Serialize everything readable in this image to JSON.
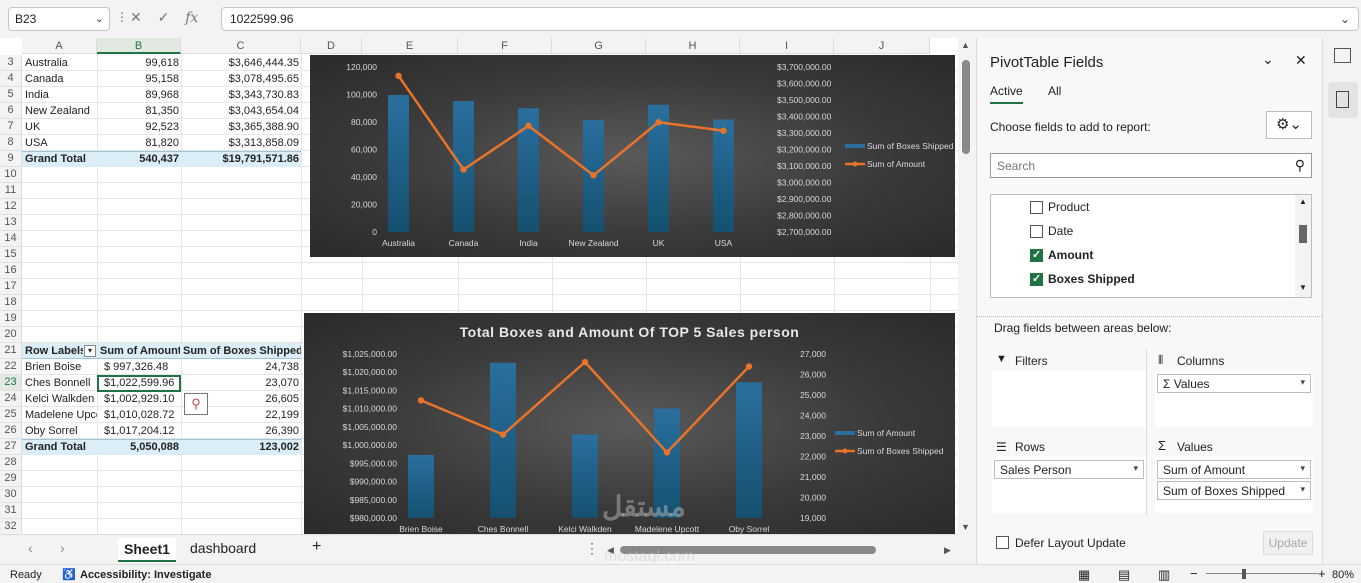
{
  "formula_bar": {
    "name_box": "B23",
    "formula_value": "1022599.96",
    "fx_label": "fx"
  },
  "columns": [
    "A",
    "B",
    "C",
    "D",
    "E",
    "F",
    "G",
    "H",
    "I",
    "J"
  ],
  "rows": [
    "3",
    "4",
    "5",
    "6",
    "7",
    "8",
    "9",
    "10",
    "11",
    "12",
    "13",
    "14",
    "15",
    "16",
    "17",
    "18",
    "19",
    "20",
    "21",
    "22",
    "23",
    "24",
    "25",
    "26",
    "27",
    "28",
    "29",
    "30",
    "31",
    "32"
  ],
  "table1": {
    "rows": [
      {
        "country": "Australia",
        "boxes": "99,618",
        "amount": "$3,646,444.35"
      },
      {
        "country": "Canada",
        "boxes": "95,158",
        "amount": "$3,078,495.65"
      },
      {
        "country": "India",
        "boxes": "89,968",
        "amount": "$3,343,730.83"
      },
      {
        "country": "New Zealand",
        "boxes": "81,350",
        "amount": "$3,043,654.04"
      },
      {
        "country": "UK",
        "boxes": "92,523",
        "amount": "$3,365,388.90"
      },
      {
        "country": "USA",
        "boxes": "81,820",
        "amount": "$3,313,858.09"
      }
    ],
    "total_label": "Grand Total",
    "total_boxes": "540,437",
    "total_amount": "$19,791,571.86"
  },
  "table2": {
    "headers": [
      "Row Labels",
      "Sum of Amount",
      "Sum of Boxes Shipped"
    ],
    "rows": [
      {
        "name": "Brien Boise",
        "amount": "$   997,326.48",
        "boxes": "24,738"
      },
      {
        "name": "Ches Bonnell",
        "amount": "$1,022,599.96",
        "boxes": "23,070"
      },
      {
        "name": "Kelci Walkden",
        "amount": "$1,002,929.10",
        "boxes": "26,605"
      },
      {
        "name": "Madelene Upcott",
        "amount": "$1,010,028.72",
        "boxes": "22,199"
      },
      {
        "name": "Oby Sorrel",
        "amount": "$1,017,204.12",
        "boxes": "26,390"
      }
    ],
    "total_label": "Grand Total",
    "total_amount": "5,050,088",
    "total_boxes": "123,002"
  },
  "chart_data": [
    {
      "type": "bar",
      "title": "",
      "categories": [
        "Australia",
        "Canada",
        "India",
        "New Zealand",
        "UK",
        "USA"
      ],
      "series": [
        {
          "name": "Sum of Boxes Shipped",
          "kind": "bar",
          "axis": "left",
          "values": [
            99618,
            95158,
            89968,
            81350,
            92523,
            81820
          ]
        },
        {
          "name": "Sum of Amount",
          "kind": "line",
          "axis": "right",
          "values": [
            3646444.35,
            3078495.65,
            3343730.83,
            3043654.04,
            3365388.9,
            3313858.09
          ]
        }
      ],
      "left_ticks": [
        "0",
        "20,000",
        "40,000",
        "60,000",
        "80,000",
        "100,000",
        "120,000"
      ],
      "right_ticks": [
        "$2,700,000.00",
        "$2,800,000.00",
        "$2,900,000.00",
        "$3,000,000.00",
        "$3,100,000.00",
        "$3,200,000.00",
        "$3,300,000.00",
        "$3,400,000.00",
        "$3,500,000.00",
        "$3,600,000.00",
        "$3,700,000.00"
      ],
      "ylim_left": [
        0,
        120000
      ],
      "ylim_right": [
        2700000,
        3700000
      ],
      "legend": "right",
      "colors": {
        "bar": "#1f5f8a",
        "line": "#e8742a"
      }
    },
    {
      "type": "bar",
      "title": "Total Boxes and Amount Of TOP 5  Sales person",
      "categories": [
        "Brien Boise",
        "Ches Bonnell",
        "Kelci Walkden",
        "Madelene Upcott",
        "Oby Sorrel"
      ],
      "series": [
        {
          "name": "Sum of Amount",
          "kind": "bar",
          "axis": "left",
          "values": [
            997326.48,
            1022599.96,
            1002929.1,
            1010028.72,
            1017204.12
          ]
        },
        {
          "name": "Sum of Boxes Shipped",
          "kind": "line",
          "axis": "right",
          "values": [
            24738,
            23070,
            26605,
            22199,
            26390
          ]
        }
      ],
      "left_ticks": [
        "$980,000.00",
        "$985,000.00",
        "$990,000.00",
        "$995,000.00",
        "$1,000,000.00",
        "$1,005,000.00",
        "$1,010,000.00",
        "$1,015,000.00",
        "$1,020,000.00",
        "$1,025,000.00"
      ],
      "right_ticks": [
        "19,000",
        "20,000",
        "21,000",
        "22,000",
        "23,000",
        "24,000",
        "25,000",
        "26,000",
        "27,000"
      ],
      "ylim_left": [
        980000,
        1025000
      ],
      "ylim_right": [
        19000,
        27000
      ],
      "legend": "right",
      "colors": {
        "bar": "#1f5f8a",
        "line": "#e8742a"
      }
    }
  ],
  "sheet_tabs": {
    "active": "Sheet1",
    "other": "dashboard",
    "add": "+"
  },
  "status": {
    "ready": "Ready",
    "accessibility": "Accessibility: Investigate",
    "zoom": "80%"
  },
  "pivot": {
    "title": "PivotTable Fields",
    "tab_active": "Active",
    "tab_all": "All",
    "choose_label": "Choose fields to add to report:",
    "search_placeholder": "Search",
    "fields": [
      {
        "label": "Product",
        "checked": false
      },
      {
        "label": "Date",
        "checked": false
      },
      {
        "label": "Amount",
        "checked": true
      },
      {
        "label": "Boxes Shipped",
        "checked": true
      }
    ],
    "drag_label": "Drag fields between areas below:",
    "filters_label": "Filters",
    "columns_label": "Columns",
    "rows_label": "Rows",
    "values_label": "Values",
    "columns_item": "Σ Values",
    "rows_item": "Sales Person",
    "values_items": [
      "Sum of Amount",
      "Sum of Boxes Shipped"
    ],
    "defer_label": "Defer Layout Update",
    "update_label": "Update"
  },
  "watermark": {
    "text": "mostaql.com"
  }
}
